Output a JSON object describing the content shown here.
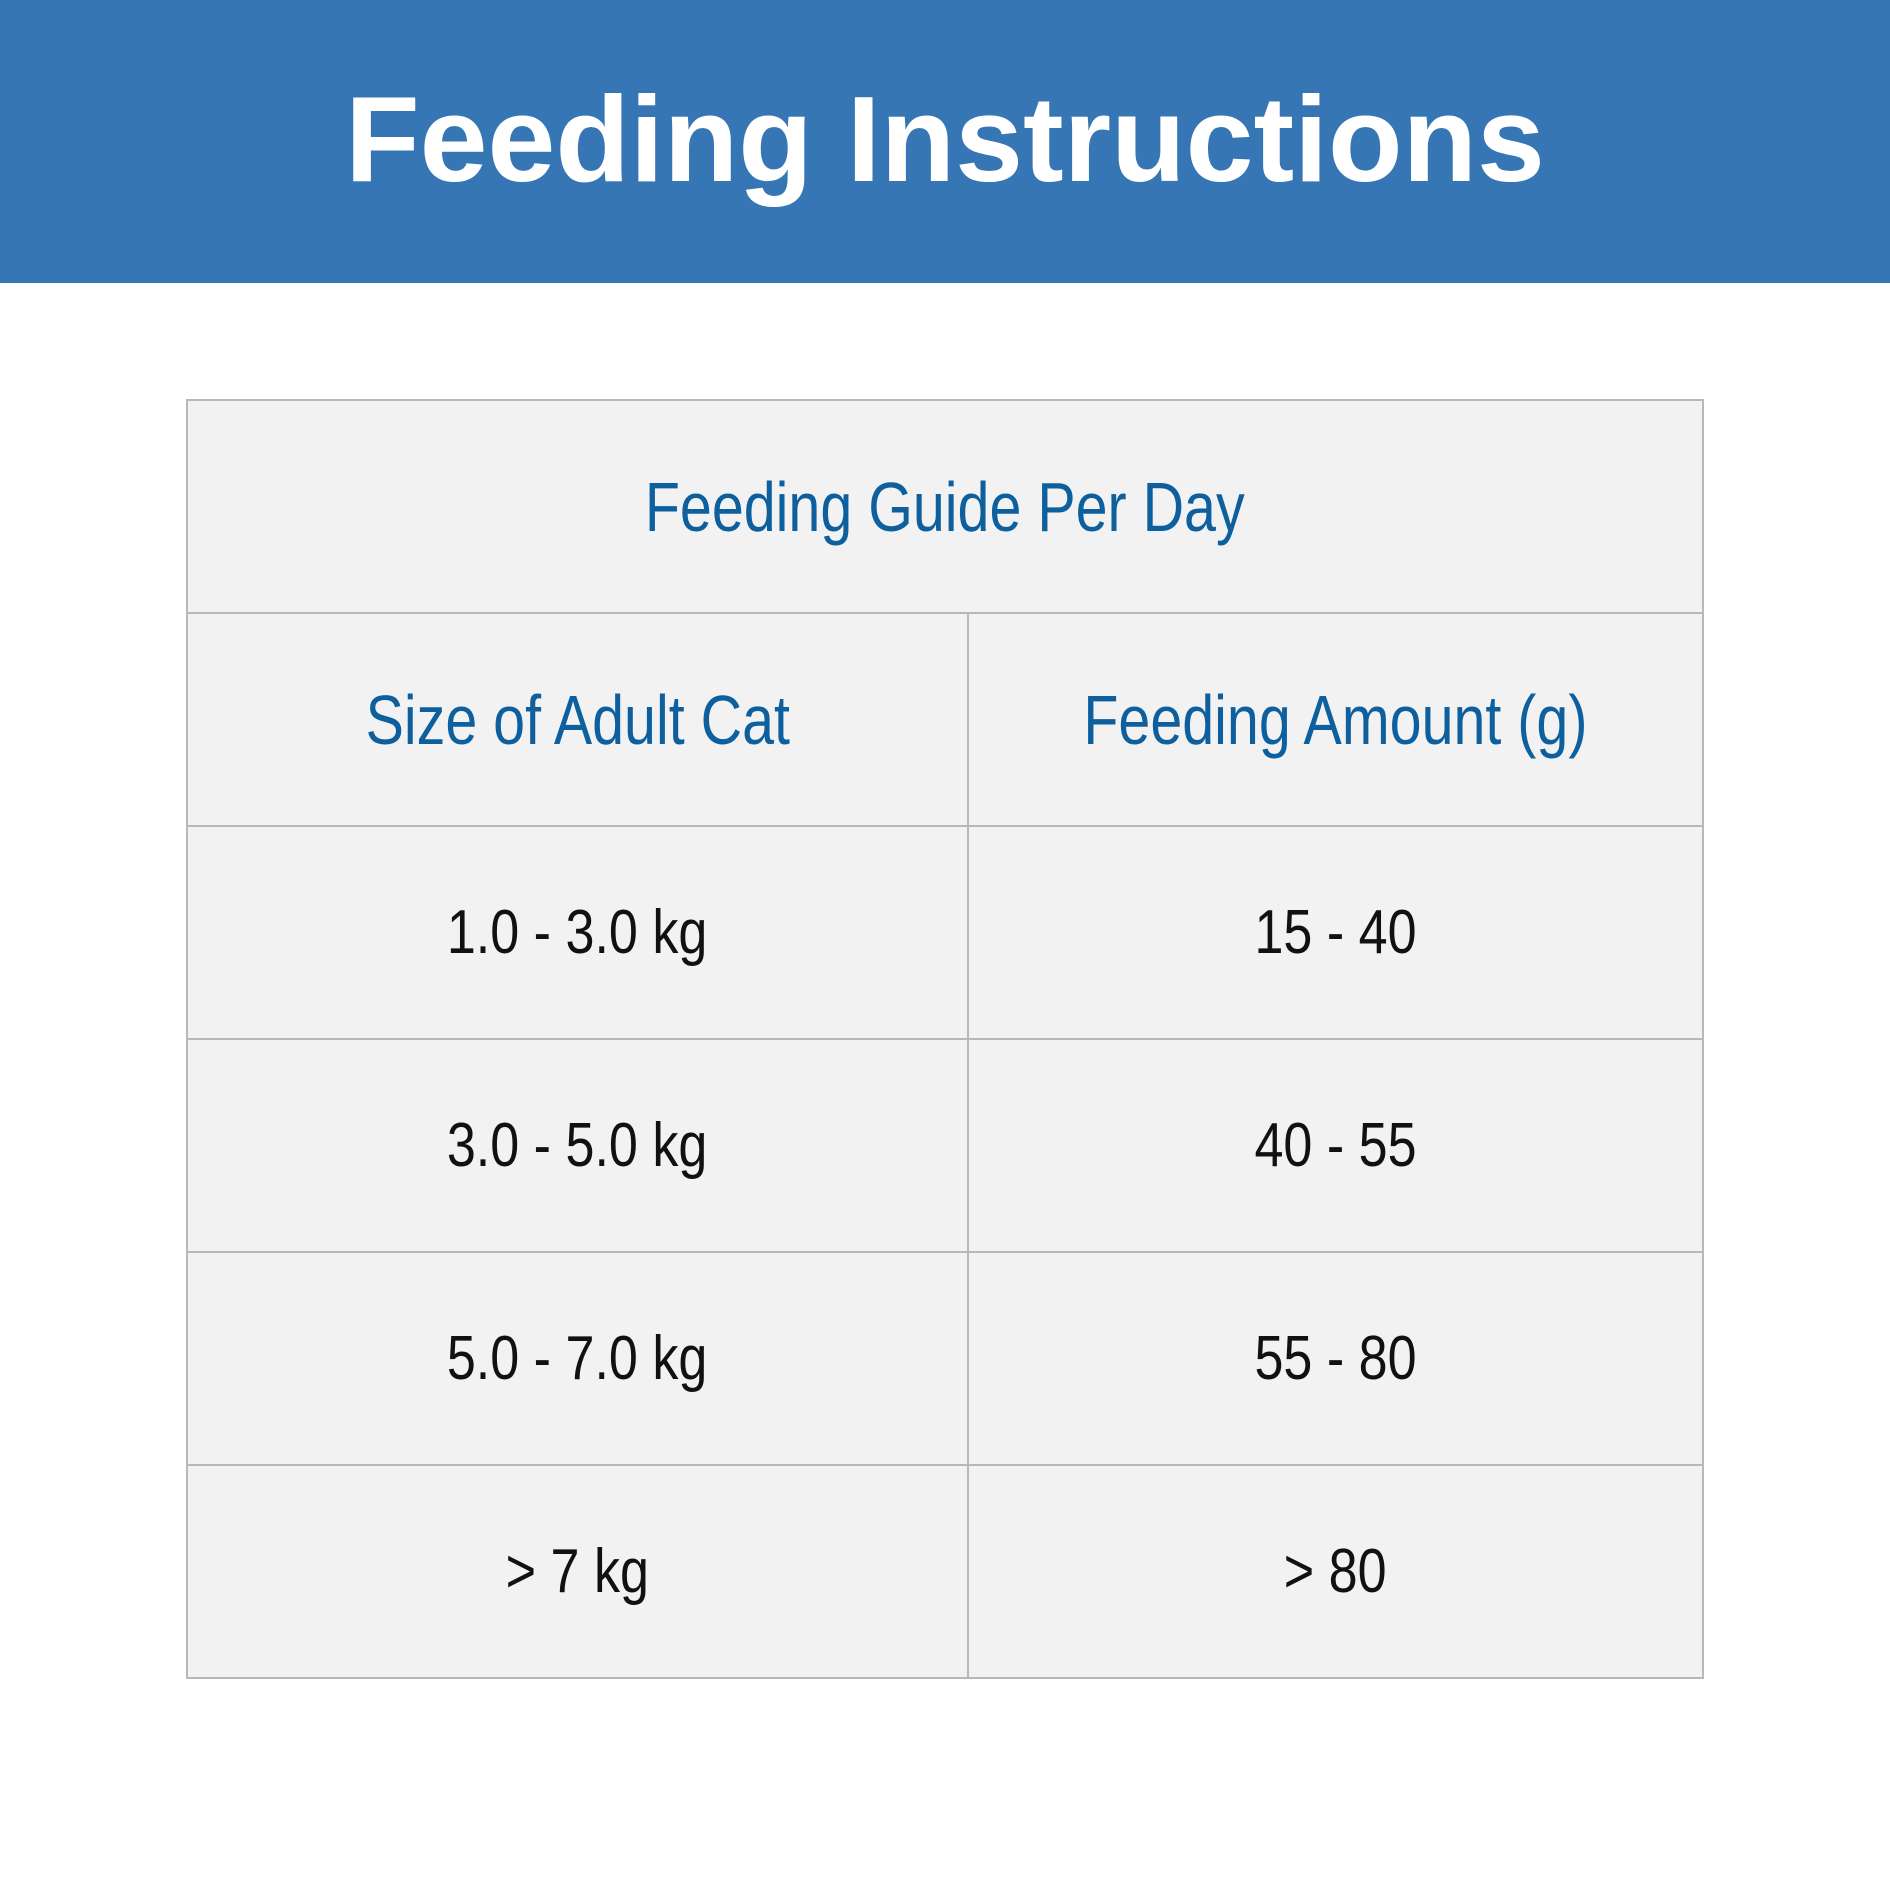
{
  "header": {
    "title": "Feeding Instructions"
  },
  "table": {
    "caption": "Feeding Guide Per Day",
    "columns": [
      "Size of Adult Cat",
      "Feeding Amount (g)"
    ],
    "rows": [
      [
        "1.0 - 3.0 kg",
        "15 - 40"
      ],
      [
        "3.0 - 5.0 kg",
        "40 - 55"
      ],
      [
        "5.0 - 7.0 kg",
        "55 - 80"
      ],
      [
        "> 7 kg",
        "> 80"
      ]
    ]
  },
  "colors": {
    "header_background": "#3776b4",
    "header_text": "#ffffff",
    "table_background": "#f2f2f2",
    "table_border": "#b8b8b8",
    "heading_text": "#0e5f9e",
    "body_text": "#111111"
  }
}
